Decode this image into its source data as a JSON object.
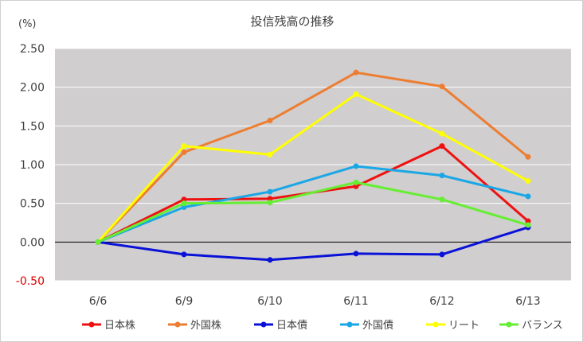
{
  "chart_data": {
    "type": "line",
    "title": "投信残高の推移",
    "unit_label": "(%)",
    "categories": [
      "6/6",
      "6/9",
      "6/10",
      "6/11",
      "6/12",
      "6/13"
    ],
    "ylim": [
      -0.5,
      2.5
    ],
    "yticks": [
      "2.50",
      "2.00",
      "1.50",
      "1.00",
      "0.50",
      "0.00",
      "-0.50"
    ],
    "ytick_values": [
      2.5,
      2.0,
      1.5,
      1.0,
      0.5,
      0.0,
      -0.5
    ],
    "grid": true,
    "legend_position": "bottom",
    "series": [
      {
        "name": "日本株",
        "color": "#ee1111",
        "values": [
          0.0,
          0.55,
          0.56,
          0.72,
          1.24,
          0.27
        ]
      },
      {
        "name": "外国株",
        "color": "#ed7d31",
        "values": [
          0.0,
          1.16,
          1.57,
          2.19,
          2.01,
          1.1
        ]
      },
      {
        "name": "日本債",
        "color": "#0a12d8",
        "values": [
          0.0,
          -0.16,
          -0.23,
          -0.15,
          -0.16,
          0.19
        ]
      },
      {
        "name": "外国債",
        "color": "#1aa7e6",
        "values": [
          0.0,
          0.45,
          0.65,
          0.98,
          0.86,
          0.59
        ]
      },
      {
        "name": "リート",
        "color": "#ffff00",
        "values": [
          0.0,
          1.24,
          1.13,
          1.91,
          1.4,
          0.79
        ]
      },
      {
        "name": "バランス",
        "color": "#66ee33",
        "values": [
          0.0,
          0.5,
          0.51,
          0.77,
          0.55,
          0.22
        ]
      }
    ],
    "colors": {
      "plot_bg": "#d0cece",
      "gridline": "#ffffff",
      "zero_line": "#000000",
      "negative_tick": "#e00000"
    }
  }
}
